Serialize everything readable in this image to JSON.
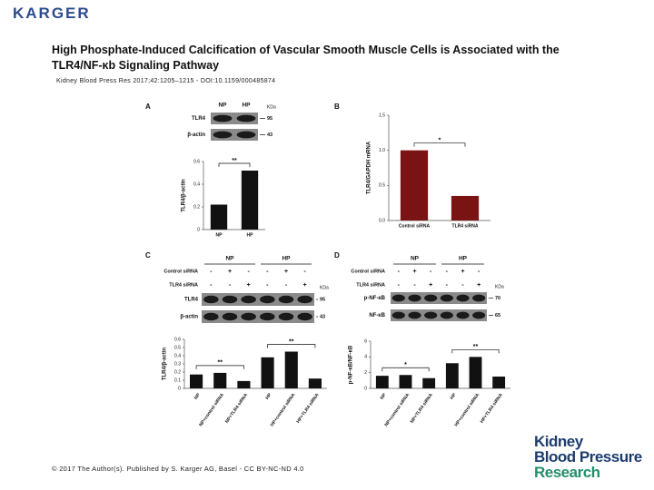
{
  "header": {
    "publisher": "KARGER",
    "title": "High Phosphate-Induced Calcification of Vascular Smooth Muscle Cells is Associated with the TLR4/NF-κb Signaling Pathway",
    "citation": "Kidney Blood Press Res 2017;42:1205–1215 - DOI:10.1159/000485874"
  },
  "figure": {
    "panels": [
      {
        "label": "A",
        "blot": {
          "lanes": [
            "NP",
            "HP"
          ],
          "unit": "KDa",
          "rows": [
            {
              "name": "TLR4",
              "kda": 95
            },
            {
              "name": "β-actin",
              "kda": 43
            }
          ]
        },
        "chart": {
          "type": "bar",
          "ylabel": "TLR4/β-actin",
          "categories": [
            "NP",
            "HP"
          ],
          "values": [
            0.22,
            0.52
          ],
          "color": "#111111",
          "ylim": [
            0,
            0.6
          ],
          "yticks": [
            0,
            0.2,
            0.4,
            0.6
          ],
          "significance": [
            "**"
          ]
        }
      },
      {
        "label": "B",
        "chart": {
          "type": "bar",
          "ylabel": "TLR4/GAPDH mRNA",
          "categories": [
            "Control siRNA",
            "TLR4 siRNA"
          ],
          "values": [
            1.0,
            0.35
          ],
          "color": "#7a1414",
          "ylim": [
            0,
            1.5
          ],
          "yticks": [
            {
              "value": 0,
              "label": "0.0"
            },
            {
              "value": 0.5,
              "label": "0.5"
            },
            {
              "value": 1,
              "label": "1.0"
            },
            {
              "value": 1.5,
              "label": "1.5"
            }
          ],
          "significance": [
            "*"
          ]
        }
      },
      {
        "label": "C",
        "blot": {
          "groups": [
            "NP",
            "HP"
          ],
          "treatments": [
            {
              "name": "Control siRNA",
              "signs": [
                "-",
                "+",
                "-",
                "-",
                "+",
                "-"
              ]
            },
            {
              "name": "TLR4 siRNA",
              "signs": [
                "-",
                "-",
                "+",
                "-",
                "-",
                "+"
              ]
            }
          ],
          "unit": "KDa",
          "rows": [
            {
              "name": "TLR4",
              "kda": 95
            },
            {
              "name": "β-actin",
              "kda": 43
            }
          ]
        },
        "chart": {
          "type": "bar",
          "ylabel": "TLR4/β-actin",
          "categories": [
            "NP",
            "NP+control siRNA",
            "NP+TLR4 siRNA",
            "HP",
            "HP+control siRNA",
            "HP+TLR4 siRNA"
          ],
          "values": [
            0.17,
            0.19,
            0.09,
            0.38,
            0.45,
            0.12
          ],
          "color": "#111111",
          "ylim": [
            0,
            0.6
          ],
          "yticks": [
            0,
            0.1,
            0.2,
            0.3,
            0.4,
            0.5,
            0.6
          ],
          "significance": [
            "**",
            "**"
          ]
        }
      },
      {
        "label": "D",
        "blot": {
          "groups": [
            "NP",
            "HP"
          ],
          "treatments": [
            {
              "name": "Control siRNA",
              "signs": [
                "-",
                "+",
                "-",
                "-",
                "+",
                "-"
              ]
            },
            {
              "name": "TLR4 siRNA",
              "signs": [
                "-",
                "-",
                "+",
                "-",
                "-",
                "+"
              ]
            }
          ],
          "unit": "KDa",
          "rows": [
            {
              "name": "p-NF-κB",
              "kda": 70
            },
            {
              "name": "NF-κB",
              "kda": 65
            }
          ]
        },
        "chart": {
          "type": "bar",
          "ylabel": "p-NF-κB/NF-κB",
          "categories": [
            "NP",
            "NP+control siRNA",
            "NP+TLR4 siRNA",
            "HP",
            "HP+control siRNA",
            "HP+TLR4 siRNA"
          ],
          "values": [
            1.6,
            1.7,
            1.3,
            3.2,
            4.0,
            1.5
          ],
          "color": "#111111",
          "ylim": [
            0,
            6
          ],
          "yticks": [
            0,
            2,
            4,
            6
          ],
          "significance": [
            "*",
            "**"
          ]
        }
      }
    ]
  },
  "footer": {
    "copyright": "© 2017 The Author(s). Published by S. Karger AG, Basel - CC BY-NC-ND 4.0",
    "journal": [
      "Kidney",
      "Blood Pressure",
      "Research"
    ]
  }
}
